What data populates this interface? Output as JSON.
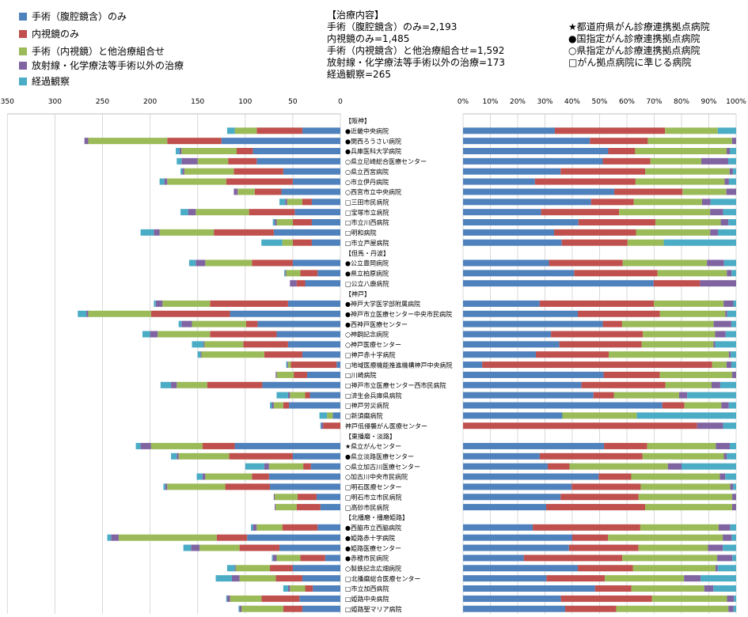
{
  "legend": [
    {
      "label": "手術（腹腔鏡含）のみ",
      "color": "#4F81BD"
    },
    {
      "label": "内視鏡のみ",
      "color": "#C0504D"
    },
    {
      "label": "手術（内視鏡）と他治療組合せ",
      "color": "#9BBB59"
    },
    {
      "label": "放射線・化学療法等手術以外の治療",
      "color": "#8064A2"
    },
    {
      "label": "経過観察",
      "color": "#4BACC6"
    }
  ],
  "treatment_info": {
    "heading": "【治療内容】",
    "lines": [
      "手術（腹腔鏡含）のみ=2,193",
      "内視鏡のみ=1,485",
      "手術（内視鏡含）と他治療組合せ=1,592",
      "放射線・化学療法等手術以外の治療=173",
      "経過観察=265"
    ]
  },
  "hospital_types": [
    "★都道府県がん診療連携拠点病院",
    "●国指定がん診療連携拠点病院",
    "○県指定がん診療連携拠点病院",
    "□がん拠点病院に準じる病院"
  ],
  "chart_data": [
    {
      "type": "bar",
      "orientation": "horizontal-stacked",
      "direction": "right-to-left",
      "xlim": [
        0,
        350
      ],
      "xticks": [
        "0",
        "50",
        "100",
        "150",
        "200",
        "250",
        "300",
        "350"
      ],
      "grid": true,
      "series_order": [
        "手術（腹腔鏡含）のみ",
        "内視鏡のみ",
        "手術（内視鏡）と他治療組合せ",
        "放射線・化学療法等手術以外の治療",
        "経過観察"
      ],
      "rows": [
        {
          "label": "【阪神】",
          "group": true
        },
        {
          "label": "●近畿中央病院",
          "values": [
            40,
            48,
            23,
            0,
            8
          ]
        },
        {
          "label": "●関西ろうさい病院",
          "values": [
            125,
            57,
            83,
            4,
            0
          ]
        },
        {
          "label": "●兵庫医科大学病院",
          "values": [
            92,
            17,
            58,
            2,
            4
          ]
        },
        {
          "label": "○県立尼崎総合医療センター",
          "values": [
            88,
            30,
            32,
            17,
            5
          ]
        },
        {
          "label": "○県立西宮病院",
          "values": [
            60,
            52,
            52,
            2,
            2
          ]
        },
        {
          "label": "○市立伊丹病院",
          "values": [
            50,
            70,
            62,
            3,
            5
          ]
        },
        {
          "label": "○西宮市立中央病院",
          "values": [
            62,
            28,
            18,
            4,
            0
          ]
        },
        {
          "label": "□三田市民病院",
          "values": [
            30,
            10,
            16,
            2,
            6
          ]
        },
        {
          "label": "□宝塚市立病院",
          "values": [
            48,
            48,
            56,
            8,
            8
          ]
        },
        {
          "label": "□市立川西病院",
          "values": [
            30,
            20,
            17,
            2,
            2
          ]
        },
        {
          "label": "□明和病院",
          "values": [
            70,
            63,
            57,
            6,
            14
          ]
        },
        {
          "label": "□市立芦屋病院",
          "values": [
            30,
            20,
            11,
            0,
            22
          ]
        },
        {
          "label": "【但馬・丹波】",
          "group": true
        },
        {
          "label": "●公立豊岡病院",
          "values": [
            50,
            43,
            49,
            10,
            7
          ]
        },
        {
          "label": "●県立柏原病院",
          "values": [
            24,
            18,
            15,
            1,
            1
          ]
        },
        {
          "label": "□公立八鹿病院",
          "values": [
            37,
            9,
            0,
            7,
            0
          ]
        },
        {
          "label": "【神戸】",
          "group": true
        },
        {
          "label": "●神戸大学医学部附属病院",
          "values": [
            55,
            82,
            50,
            7,
            2
          ]
        },
        {
          "label": "●神戸市立医療センター中央市民病院",
          "values": [
            116,
            83,
            66,
            2,
            9
          ]
        },
        {
          "label": "●西神戸医療センター",
          "values": [
            87,
            12,
            57,
            11,
            3
          ]
        },
        {
          "label": "○神鋼記念病院",
          "values": [
            67,
            70,
            55,
            8,
            8
          ]
        },
        {
          "label": "○神戸医療センター",
          "values": [
            55,
            47,
            41,
            1,
            12
          ]
        },
        {
          "label": "□神戸赤十字病院",
          "values": [
            40,
            40,
            66,
            1,
            3
          ]
        },
        {
          "label": "□地域医療機能推進機構神戸中央病院",
          "values": [
            4,
            48,
            3,
            1,
            1
          ]
        },
        {
          "label": "□川崎病院",
          "values": [
            35,
            14,
            18,
            1,
            0
          ]
        },
        {
          "label": "□神戸市立医療センター西市民病院",
          "values": [
            82,
            58,
            32,
            6,
            11
          ]
        },
        {
          "label": "□済生会兵庫県病院",
          "values": [
            32,
            5,
            16,
            2,
            12
          ]
        },
        {
          "label": "□神戸労災病院",
          "values": [
            54,
            6,
            10,
            2,
            2
          ]
        },
        {
          "label": "□新須磨病院",
          "values": [
            8,
            0,
            6,
            0,
            8
          ]
        },
        {
          "label": "神戸低侵襲がん医療センター",
          "values": [
            0,
            18,
            0,
            2,
            1
          ]
        },
        {
          "label": "【東播磨・淡路】",
          "group": true
        },
        {
          "label": "★県立がんセンター",
          "values": [
            111,
            34,
            54,
            11,
            5
          ]
        },
        {
          "label": "●県立淡路医療センター",
          "values": [
            50,
            67,
            53,
            2,
            6
          ]
        },
        {
          "label": "○県立加古川医療センター",
          "values": [
            31,
            8,
            36,
            5,
            20
          ]
        },
        {
          "label": "○加古川中央市民病院",
          "values": [
            75,
            18,
            49,
            3,
            6
          ]
        },
        {
          "label": "□明石医療センター",
          "values": [
            74,
            47,
            61,
            2,
            2
          ]
        },
        {
          "label": "□明石市立市民病院",
          "values": [
            25,
            20,
            24,
            1,
            0
          ]
        },
        {
          "label": "□高砂市民病院",
          "values": [
            21,
            25,
            22,
            1,
            0
          ]
        },
        {
          "label": "【北播磨・播磨姫路】",
          "group": true
        },
        {
          "label": "●西脇市立西脇病院",
          "values": [
            24,
            37,
            27,
            4,
            2
          ]
        },
        {
          "label": "●姫路赤十字病院",
          "values": [
            98,
            32,
            103,
            8,
            4
          ]
        },
        {
          "label": "●姫路医療センター",
          "values": [
            64,
            42,
            42,
            9,
            8
          ]
        },
        {
          "label": "●赤穂市民病院",
          "values": [
            16,
            26,
            25,
            4,
            1
          ]
        },
        {
          "label": "○製鉄記念広畑病院",
          "values": [
            50,
            24,
            36,
            1,
            8
          ]
        },
        {
          "label": "□北播磨総合医療センター",
          "values": [
            40,
            28,
            38,
            8,
            17
          ]
        },
        {
          "label": "□市立加西病院",
          "values": [
            29,
            8,
            16,
            2,
            5
          ]
        },
        {
          "label": "□姫路中央病院",
          "values": [
            43,
            40,
            33,
            3,
            1
          ]
        },
        {
          "label": "□姫路聖マリア病院",
          "values": [
            40,
            20,
            44,
            2,
            1
          ]
        }
      ]
    },
    {
      "type": "bar",
      "orientation": "horizontal-stacked-percent",
      "xlim": [
        0,
        100
      ],
      "xticks": [
        "0%",
        "10%",
        "20%",
        "30%",
        "40%",
        "50%",
        "60%",
        "70%",
        "80%",
        "90%",
        "100%"
      ],
      "grid": true,
      "same_rows_as_left": true
    }
  ]
}
